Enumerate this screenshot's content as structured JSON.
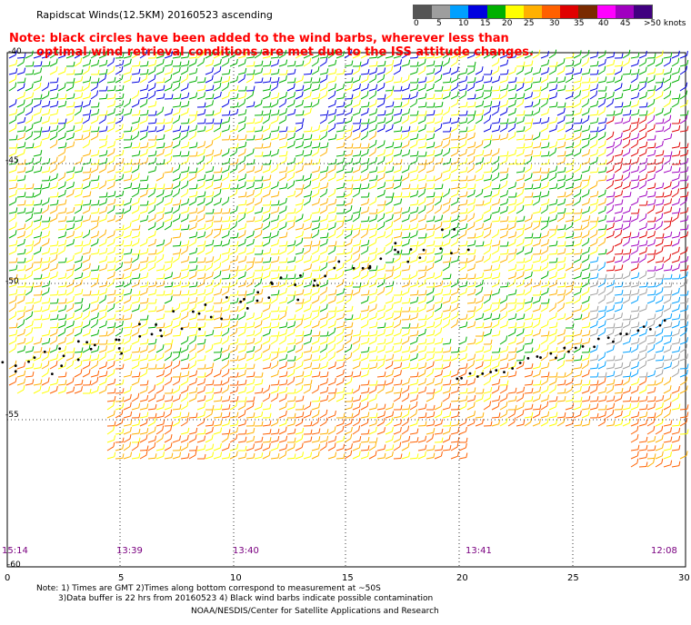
{
  "title": "Rapidscat Winds(12.5KM) 20160523 ascending",
  "note_line1": "Note: black circles have been added to the wind barbs, wherever less than",
  "note_line2": "optimal wind retrieval conditions are met due to the ISS attitude changes.",
  "legend": {
    "labels": [
      "0",
      "5",
      "10",
      "15",
      "20",
      "25",
      "30",
      "35",
      "40",
      "45",
      ">50 knots"
    ],
    "colors": [
      "#555555",
      "#9e9e9e",
      "#00a0ff",
      "#0000e0",
      "#00b000",
      "#ffff00",
      "#ffb000",
      "#ff6000",
      "#e00000",
      "#7a2a00",
      "#ff00ff",
      "#a000c0",
      "#400080"
    ]
  },
  "axes": {
    "lat_labels": [
      "-40",
      "-45",
      "-50",
      "-55",
      "-60"
    ],
    "lon_labels": [
      "0",
      "5",
      "10",
      "15",
      "20",
      "25",
      "30"
    ]
  },
  "times": [
    "15:14",
    "13:39",
    "13:40",
    "13:41",
    "12:08"
  ],
  "footer": {
    "line1": "Note: 1) Times are GMT 2)Times along bottom correspond to measurement at ~50S",
    "line2": "3)Data buffer is 22 hrs from 20160523 4) Black wind barbs indicate possible contamination",
    "credit": "NOAA/NESDIS/Center for Satellite Applications and Research"
  }
}
